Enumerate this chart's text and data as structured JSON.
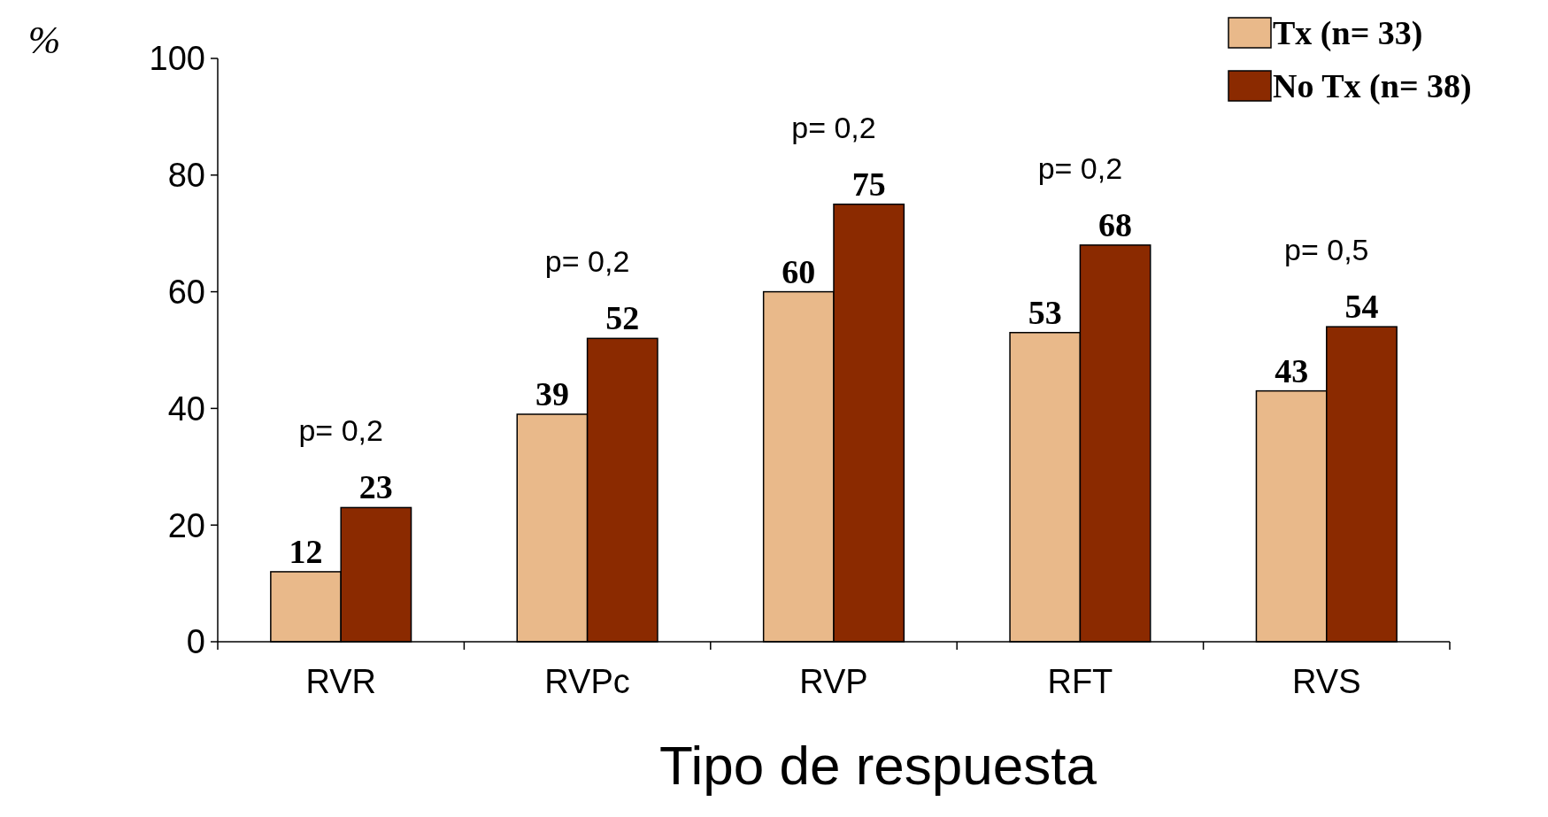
{
  "chart_data": {
    "type": "bar",
    "xlabel": "Tipo de respuesta",
    "ylabel": "%",
    "categories": [
      "RVR",
      "RVPc",
      "RVP",
      "RFT",
      "RVS"
    ],
    "series": [
      {
        "name": "Tx (n= 33)",
        "color": "#e9b98a",
        "values": [
          12,
          39,
          60,
          53,
          43
        ]
      },
      {
        "name": "No Tx (n= 38)",
        "color": "#8b2a00",
        "values": [
          23,
          52,
          75,
          68,
          54
        ]
      }
    ],
    "ylim": [
      0,
      100
    ],
    "yticks": [
      0,
      20,
      40,
      60,
      80,
      100
    ],
    "data_labels": true,
    "legend": "top right",
    "grid": false,
    "annotations": [
      "p= 0,2",
      "p= 0,2",
      "p= 0,2",
      "p= 0,2",
      "p= 0,5"
    ]
  }
}
